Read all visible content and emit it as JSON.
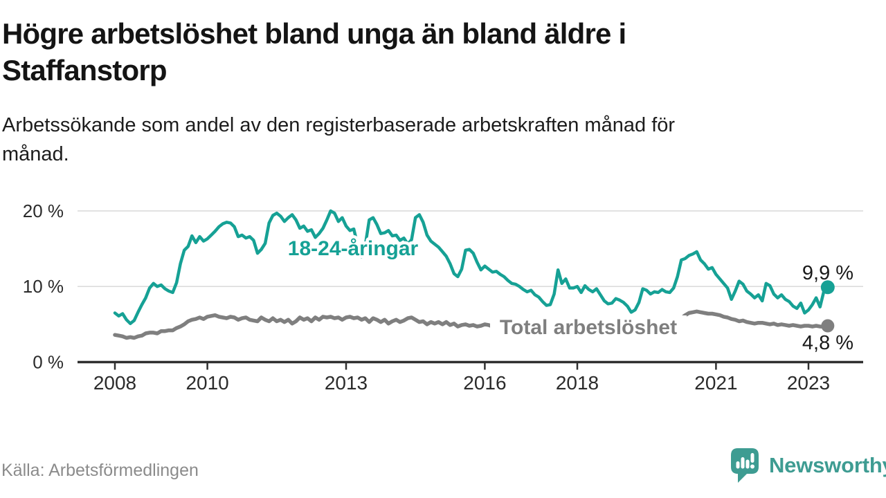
{
  "header": {
    "title_lines": [
      "Högre arbetslöshet bland unga än bland äldre i",
      "Staffanstorp"
    ],
    "subtitle_lines": [
      "Arbetssökande som andel av den registerbaserade arbetskraften månad för",
      "månad."
    ]
  },
  "footer": {
    "source": "Källa: Arbetsförmedlingen",
    "brand": "Newsworthy"
  },
  "colors": {
    "youth_line": "#16A195",
    "total_line": "#7F7F7F",
    "brand_teal": "#3E9C92",
    "grid": "#DCDCDC",
    "axis": "#2F2F2F",
    "text": "#1A1A1A",
    "muted_text": "#8B8B8B"
  },
  "chart_data": {
    "type": "line",
    "title": "Högre arbetslöshet bland unga än bland äldre i Staffanstorp",
    "subtitle": "Arbetssökande som andel av den registerbaserade arbetskraften månad för månad.",
    "x_start_year": 2008,
    "x_resolution": "monthly",
    "x_end_label": "jun 2023",
    "x_ticks": [
      2008,
      2010,
      2013,
      2016,
      2018,
      2021,
      2023
    ],
    "y_ticks": [
      {
        "value": 0,
        "label": "0 %"
      },
      {
        "value": 10,
        "label": "10 %"
      },
      {
        "value": 20,
        "label": "20 %"
      }
    ],
    "ylim": [
      0,
      21.5
    ],
    "grid": "horizontal",
    "legend_position": "inline-labels",
    "series": [
      {
        "name": "18-24-åringar",
        "color": "#16A195",
        "end_label": "9,9 %",
        "end_value": 9.9,
        "values": [
          6.5,
          6.1,
          6.4,
          5.6,
          5.1,
          5.5,
          6.6,
          7.6,
          8.5,
          9.8,
          10.4,
          10.0,
          10.2,
          9.7,
          9.4,
          9.2,
          10.5,
          13.0,
          14.8,
          15.3,
          16.7,
          15.8,
          16.6,
          16.0,
          16.3,
          16.8,
          17.3,
          17.9,
          18.3,
          18.5,
          18.4,
          17.9,
          16.6,
          16.8,
          16.4,
          16.6,
          16.1,
          14.4,
          14.9,
          15.7,
          18.4,
          19.4,
          19.7,
          19.3,
          18.6,
          19.1,
          19.5,
          18.8,
          17.7,
          18.0,
          17.3,
          17.5,
          16.5,
          17.0,
          17.7,
          18.8,
          20.0,
          19.7,
          18.6,
          19.1,
          18.0,
          17.4,
          17.6,
          15.5,
          13.9,
          15.5,
          18.8,
          19.1,
          18.2,
          17.0,
          17.1,
          17.4,
          16.7,
          16.8,
          16.1,
          16.4,
          15.6,
          16.2,
          19.1,
          19.5,
          18.5,
          16.8,
          16.0,
          15.6,
          15.2,
          14.6,
          14.0,
          13.0,
          11.7,
          11.3,
          12.3,
          14.8,
          14.9,
          14.4,
          13.2,
          12.2,
          12.7,
          12.3,
          11.9,
          12.0,
          11.6,
          11.3,
          10.8,
          10.4,
          10.3,
          10.0,
          9.6,
          9.3,
          9.5,
          8.9,
          8.6,
          8.0,
          7.5,
          7.6,
          9.0,
          12.2,
          10.4,
          11.0,
          9.8,
          9.8,
          10.0,
          9.2,
          10.1,
          9.6,
          9.3,
          9.7,
          8.9,
          8.1,
          7.7,
          7.8,
          8.4,
          8.2,
          7.9,
          7.4,
          6.6,
          6.9,
          7.9,
          9.7,
          9.5,
          9.0,
          9.3,
          9.2,
          9.6,
          9.3,
          9.2,
          9.8,
          11.3,
          13.5,
          13.7,
          14.1,
          14.3,
          14.6,
          13.5,
          13.0,
          12.3,
          12.5,
          11.6,
          11.0,
          10.4,
          9.8,
          8.3,
          9.4,
          10.7,
          10.3,
          9.4,
          9.0,
          8.5,
          8.9,
          8.1,
          10.4,
          10.1,
          9.0,
          8.5,
          8.9,
          8.3,
          8.0,
          7.4,
          7.1,
          7.8,
          6.5,
          6.9,
          7.6,
          8.5,
          7.3,
          9.4,
          9.9
        ]
      },
      {
        "name": "Total arbetslöshet",
        "color": "#7F7F7F",
        "end_label": "4,8 %",
        "end_value": 4.8,
        "values": [
          3.6,
          3.5,
          3.4,
          3.2,
          3.3,
          3.2,
          3.4,
          3.5,
          3.8,
          3.9,
          3.9,
          3.8,
          4.1,
          4.1,
          4.2,
          4.2,
          4.5,
          4.7,
          5.0,
          5.4,
          5.6,
          5.7,
          5.9,
          5.7,
          6.0,
          6.1,
          6.2,
          6.0,
          5.9,
          5.8,
          6.0,
          5.9,
          5.6,
          5.8,
          5.9,
          5.6,
          5.5,
          5.4,
          5.9,
          5.6,
          5.4,
          5.8,
          5.4,
          5.6,
          5.3,
          5.6,
          5.1,
          5.4,
          5.9,
          5.6,
          5.8,
          5.4,
          5.9,
          5.6,
          6.0,
          5.9,
          6.0,
          5.8,
          5.9,
          5.6,
          5.9,
          6.0,
          5.8,
          5.9,
          5.6,
          5.8,
          5.3,
          5.8,
          5.6,
          5.3,
          5.6,
          5.1,
          5.4,
          5.6,
          5.3,
          5.5,
          5.8,
          5.9,
          5.6,
          5.3,
          5.4,
          5.0,
          5.3,
          5.1,
          5.3,
          5.0,
          5.3,
          4.9,
          5.1,
          4.7,
          4.9,
          5.0,
          4.8,
          4.9,
          4.7,
          4.8,
          5.0,
          4.9,
          4.7,
          4.7,
          4.6,
          4.7,
          4.5,
          4.6,
          4.4,
          4.5,
          4.4,
          4.5,
          4.6,
          4.5,
          4.4,
          4.5,
          4.3,
          4.4,
          4.2,
          4.3,
          4.2,
          4.3,
          4.2,
          4.3,
          4.4,
          4.3,
          4.2,
          4.3,
          4.2,
          4.1,
          4.2,
          4.1,
          4.2,
          4.1,
          4.2,
          4.1,
          4.2,
          4.1,
          4.2,
          4.1,
          4.2,
          4.2,
          4.3,
          4.2,
          4.3,
          4.3,
          4.4,
          4.4,
          4.5,
          4.7,
          5.2,
          5.8,
          6.2,
          6.5,
          6.6,
          6.7,
          6.6,
          6.5,
          6.4,
          6.4,
          6.3,
          6.2,
          6.0,
          5.9,
          5.7,
          5.6,
          5.4,
          5.5,
          5.3,
          5.2,
          5.1,
          5.2,
          5.2,
          5.1,
          5.0,
          5.1,
          4.9,
          5.0,
          4.9,
          4.8,
          4.9,
          4.8,
          4.7,
          4.8,
          4.8,
          4.7,
          4.8,
          4.7,
          4.7,
          4.8
        ]
      }
    ]
  }
}
